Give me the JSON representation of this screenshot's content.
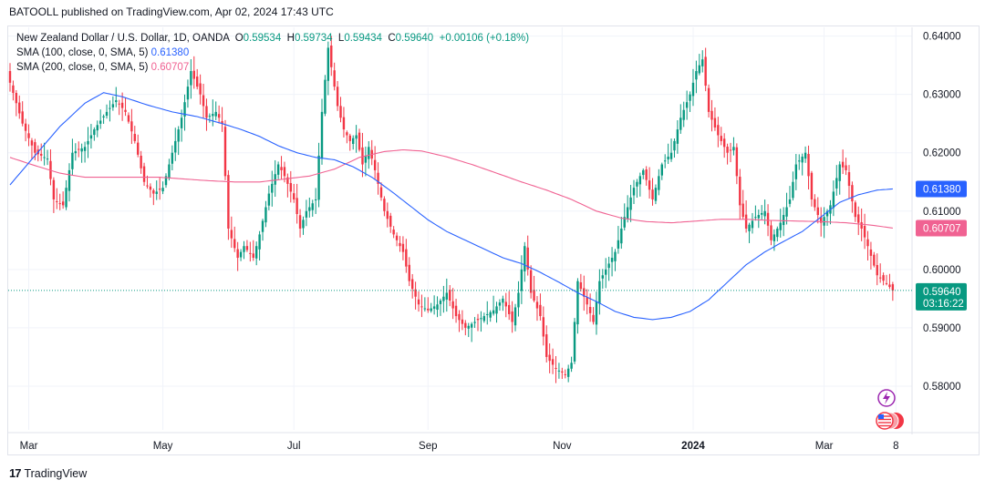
{
  "header": {
    "published": "BATOOLL published on TradingView.com, Apr 02, 2024 17:43 UTC"
  },
  "legend": {
    "symbol": "New Zealand Dollar / U.S. Dollar, 1D, OANDA",
    "open_label": "O",
    "open": "0.59534",
    "high_label": "H",
    "high": "0.59734",
    "low_label": "L",
    "low": "0.59434",
    "close_label": "C",
    "close": "0.59640",
    "change": "+0.00106 (+0.18%)",
    "sma100_label": "SMA (100, close, 0, SMA, 5)",
    "sma100_value": "0.61380",
    "sma200_label": "SMA (200, close, 0, SMA, 5)",
    "sma200_value": "0.60707"
  },
  "footer": {
    "logo": "17",
    "brand": "TradingView"
  },
  "colors": {
    "up": "#089981",
    "down": "#f23645",
    "sma100": "#2962ff",
    "sma200": "#f06292",
    "grid": "#f0f3fa",
    "axis": "#131722"
  },
  "chart_data": {
    "type": "candlestick",
    "title": "New Zealand Dollar / U.S. Dollar, 1D, OANDA",
    "ylim": [
      0.5725,
      0.6415
    ],
    "y_ticks": [
      "0.64000",
      "0.63000",
      "0.62000",
      "0.61000",
      "0.60000",
      "0.59000",
      "0.58000"
    ],
    "x_ticks": [
      "Mar",
      "May",
      "Jul",
      "Sep",
      "Nov",
      "2024",
      "Mar",
      "8"
    ],
    "x_tick_index": [
      6,
      49,
      91,
      134,
      177,
      219,
      261,
      284
    ],
    "current_price": "0.59640",
    "countdown": "03:16:22",
    "price_labels": [
      {
        "text": "0.61380",
        "value": 0.6138,
        "color": "#2962ff"
      },
      {
        "text": "0.60707",
        "value": 0.60707,
        "color": "#f06292"
      }
    ],
    "close_keyframes": [
      [
        0,
        0.632
      ],
      [
        4,
        0.625
      ],
      [
        8,
        0.62
      ],
      [
        12,
        0.619
      ],
      [
        14,
        0.612
      ],
      [
        17,
        0.611
      ],
      [
        20,
        0.62
      ],
      [
        24,
        0.621
      ],
      [
        27,
        0.624
      ],
      [
        31,
        0.627
      ],
      [
        34,
        0.629
      ],
      [
        37,
        0.627
      ],
      [
        40,
        0.622
      ],
      [
        43,
        0.615
      ],
      [
        46,
        0.613
      ],
      [
        49,
        0.614
      ],
      [
        52,
        0.62
      ],
      [
        55,
        0.626
      ],
      [
        58,
        0.634
      ],
      [
        61,
        0.63
      ],
      [
        63,
        0.626
      ],
      [
        66,
        0.627
      ],
      [
        68,
        0.625
      ],
      [
        70,
        0.607
      ],
      [
        73,
        0.602
      ],
      [
        75,
        0.604
      ],
      [
        78,
        0.602
      ],
      [
        80,
        0.606
      ],
      [
        83,
        0.613
      ],
      [
        86,
        0.618
      ],
      [
        88,
        0.616
      ],
      [
        91,
        0.612
      ],
      [
        93,
        0.607
      ],
      [
        95,
        0.61
      ],
      [
        98,
        0.612
      ],
      [
        100,
        0.627
      ],
      [
        102,
        0.638
      ],
      [
        105,
        0.628
      ],
      [
        107,
        0.624
      ],
      [
        109,
        0.622
      ],
      [
        111,
        0.623
      ],
      [
        113,
        0.618
      ],
      [
        115,
        0.621
      ],
      [
        117,
        0.617
      ],
      [
        120,
        0.61
      ],
      [
        123,
        0.606
      ],
      [
        126,
        0.603
      ],
      [
        128,
        0.598
      ],
      [
        131,
        0.594
      ],
      [
        134,
        0.593
      ],
      [
        137,
        0.594
      ],
      [
        140,
        0.596
      ],
      [
        143,
        0.592
      ],
      [
        146,
        0.59
      ],
      [
        149,
        0.591
      ],
      [
        152,
        0.592
      ],
      [
        155,
        0.593
      ],
      [
        158,
        0.595
      ],
      [
        161,
        0.591
      ],
      [
        163,
        0.596
      ],
      [
        165,
        0.604
      ],
      [
        167,
        0.596
      ],
      [
        170,
        0.592
      ],
      [
        172,
        0.585
      ],
      [
        175,
        0.583
      ],
      [
        178,
        0.582
      ],
      [
        180,
        0.584
      ],
      [
        182,
        0.598
      ],
      [
        185,
        0.594
      ],
      [
        187,
        0.591
      ],
      [
        189,
        0.598
      ],
      [
        191,
        0.6
      ],
      [
        194,
        0.603
      ],
      [
        197,
        0.609
      ],
      [
        200,
        0.614
      ],
      [
        203,
        0.617
      ],
      [
        206,
        0.612
      ],
      [
        209,
        0.618
      ],
      [
        212,
        0.62
      ],
      [
        215,
        0.626
      ],
      [
        218,
        0.63
      ],
      [
        220,
        0.634
      ],
      [
        222,
        0.636
      ],
      [
        224,
        0.627
      ],
      [
        227,
        0.623
      ],
      [
        230,
        0.62
      ],
      [
        232,
        0.621
      ],
      [
        234,
        0.611
      ],
      [
        236,
        0.607
      ],
      [
        239,
        0.609
      ],
      [
        242,
        0.61
      ],
      [
        244,
        0.605
      ],
      [
        247,
        0.608
      ],
      [
        250,
        0.612
      ],
      [
        252,
        0.618
      ],
      [
        255,
        0.62
      ],
      [
        257,
        0.612
      ],
      [
        260,
        0.608
      ],
      [
        263,
        0.611
      ],
      [
        266,
        0.618
      ],
      [
        268,
        0.617
      ],
      [
        271,
        0.609
      ],
      [
        273,
        0.607
      ],
      [
        275,
        0.604
      ],
      [
        278,
        0.599
      ],
      [
        281,
        0.5976
      ],
      [
        283,
        0.5964
      ]
    ],
    "sma100_keyframes": [
      [
        0,
        0.6145
      ],
      [
        8,
        0.6195
      ],
      [
        16,
        0.6245
      ],
      [
        24,
        0.6285
      ],
      [
        30,
        0.6303
      ],
      [
        36,
        0.6296
      ],
      [
        44,
        0.6282
      ],
      [
        52,
        0.627
      ],
      [
        60,
        0.6262
      ],
      [
        68,
        0.625
      ],
      [
        74,
        0.624
      ],
      [
        80,
        0.6228
      ],
      [
        86,
        0.6212
      ],
      [
        92,
        0.62
      ],
      [
        98,
        0.6192
      ],
      [
        104,
        0.6188
      ],
      [
        110,
        0.6176
      ],
      [
        116,
        0.6158
      ],
      [
        122,
        0.6135
      ],
      [
        128,
        0.611
      ],
      [
        134,
        0.6085
      ],
      [
        140,
        0.6065
      ],
      [
        146,
        0.605
      ],
      [
        152,
        0.6035
      ],
      [
        158,
        0.602
      ],
      [
        164,
        0.601
      ],
      [
        170,
        0.5995
      ],
      [
        176,
        0.5978
      ],
      [
        182,
        0.596
      ],
      [
        188,
        0.5945
      ],
      [
        194,
        0.5928
      ],
      [
        200,
        0.5918
      ],
      [
        206,
        0.5914
      ],
      [
        212,
        0.5918
      ],
      [
        218,
        0.5928
      ],
      [
        224,
        0.5948
      ],
      [
        230,
        0.5978
      ],
      [
        236,
        0.6008
      ],
      [
        242,
        0.603
      ],
      [
        248,
        0.6048
      ],
      [
        254,
        0.6065
      ],
      [
        260,
        0.609
      ],
      [
        266,
        0.6115
      ],
      [
        272,
        0.6128
      ],
      [
        278,
        0.6136
      ],
      [
        283,
        0.6138
      ]
    ],
    "sma200_keyframes": [
      [
        0,
        0.6192
      ],
      [
        8,
        0.6178
      ],
      [
        16,
        0.6165
      ],
      [
        24,
        0.6158
      ],
      [
        32,
        0.6158
      ],
      [
        40,
        0.6158
      ],
      [
        48,
        0.6158
      ],
      [
        56,
        0.6155
      ],
      [
        64,
        0.6152
      ],
      [
        72,
        0.615
      ],
      [
        80,
        0.615
      ],
      [
        88,
        0.6155
      ],
      [
        96,
        0.616
      ],
      [
        104,
        0.6172
      ],
      [
        112,
        0.6192
      ],
      [
        120,
        0.6202
      ],
      [
        126,
        0.6205
      ],
      [
        132,
        0.6203
      ],
      [
        140,
        0.6193
      ],
      [
        148,
        0.618
      ],
      [
        156,
        0.6165
      ],
      [
        164,
        0.615
      ],
      [
        172,
        0.6136
      ],
      [
        180,
        0.612
      ],
      [
        188,
        0.61
      ],
      [
        196,
        0.6088
      ],
      [
        204,
        0.6082
      ],
      [
        212,
        0.608
      ],
      [
        220,
        0.6083
      ],
      [
        228,
        0.6086
      ],
      [
        236,
        0.6086
      ],
      [
        244,
        0.6084
      ],
      [
        252,
        0.6083
      ],
      [
        260,
        0.6082
      ],
      [
        268,
        0.608
      ],
      [
        276,
        0.6076
      ],
      [
        283,
        0.6071
      ]
    ]
  }
}
